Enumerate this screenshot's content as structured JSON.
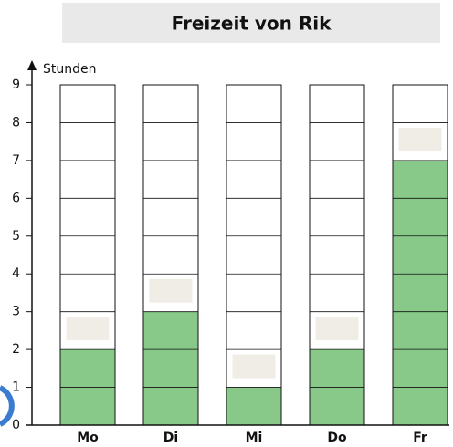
{
  "chart_data": {
    "type": "bar",
    "title": "Freizeit von Rik",
    "y_label": "Stunden",
    "categories": [
      "Mo",
      "Di",
      "Mi",
      "Do",
      "Fr"
    ],
    "values": [
      2,
      3,
      1,
      2,
      7
    ],
    "color": "#88c98a",
    "ylim": [
      0,
      9
    ],
    "yticks": [
      0,
      1,
      2,
      3,
      4,
      5,
      6,
      7,
      8,
      9
    ],
    "grid": true
  }
}
